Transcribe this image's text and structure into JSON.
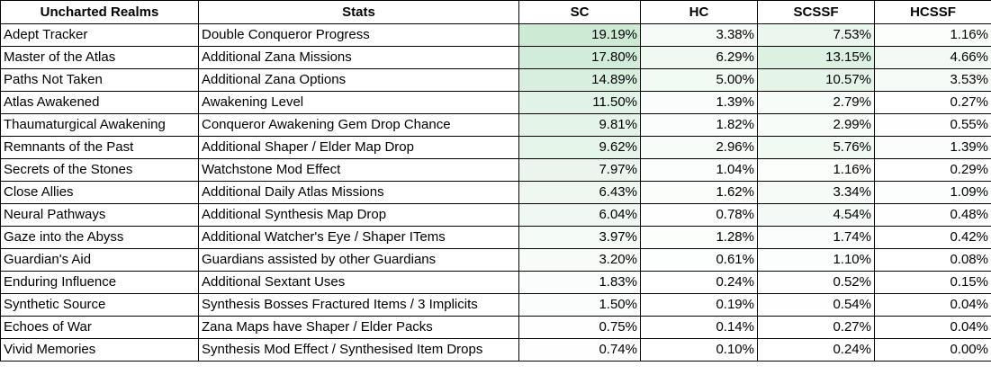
{
  "headers": {
    "realm": "Uncharted Realms",
    "stats": "Stats",
    "sc": "SC",
    "hc": "HC",
    "scssf": "SCSSF",
    "hcssf": "HCSSF"
  },
  "heat_color": "#63BE7B",
  "rows": [
    {
      "realm": "Adept Tracker",
      "stat": "Double Conqueror Progress",
      "sc": "19.19%",
      "hc": "3.38%",
      "scssf": "7.53%",
      "hcssf": "1.16%"
    },
    {
      "realm": "Master of the Atlas",
      "stat": "Additional Zana Missions",
      "sc": "17.80%",
      "hc": "6.29%",
      "scssf": "13.15%",
      "hcssf": "4.66%"
    },
    {
      "realm": "Paths Not Taken",
      "stat": "Additional Zana Options",
      "sc": "14.89%",
      "hc": "5.00%",
      "scssf": "10.57%",
      "hcssf": "3.53%"
    },
    {
      "realm": "Atlas Awakened",
      "stat": "Awakening Level",
      "sc": "11.50%",
      "hc": "1.39%",
      "scssf": "2.79%",
      "hcssf": "0.27%"
    },
    {
      "realm": "Thaumaturgical Awakening",
      "stat": "Conqueror Awakening Gem Drop Chance",
      "sc": "9.81%",
      "hc": "1.82%",
      "scssf": "2.99%",
      "hcssf": "0.55%"
    },
    {
      "realm": "Remnants of the Past",
      "stat": "Additional Shaper / Elder Map Drop",
      "sc": "9.62%",
      "hc": "2.96%",
      "scssf": "5.76%",
      "hcssf": "1.39%"
    },
    {
      "realm": "Secrets of the Stones",
      "stat": "Watchstone Mod Effect",
      "sc": "7.97%",
      "hc": "1.04%",
      "scssf": "1.16%",
      "hcssf": "0.29%"
    },
    {
      "realm": "Close Allies",
      "stat": "Additional Daily Atlas Missions",
      "sc": "6.43%",
      "hc": "1.62%",
      "scssf": "3.34%",
      "hcssf": "1.09%"
    },
    {
      "realm": "Neural Pathways",
      "stat": "Additional Synthesis Map Drop",
      "sc": "6.04%",
      "hc": "0.78%",
      "scssf": "4.54%",
      "hcssf": "0.48%"
    },
    {
      "realm": "Gaze into the Abyss",
      "stat": "Additional Watcher's Eye / Shaper ITems",
      "sc": "3.97%",
      "hc": "1.28%",
      "scssf": "1.74%",
      "hcssf": "0.42%"
    },
    {
      "realm": "Guardian's Aid",
      "stat": "Guardians assisted by other Guardians",
      "sc": "3.20%",
      "hc": "0.61%",
      "scssf": "1.10%",
      "hcssf": "0.08%"
    },
    {
      "realm": "Enduring Influence",
      "stat": "Additional Sextant Uses",
      "sc": "1.83%",
      "hc": "0.24%",
      "scssf": "0.52%",
      "hcssf": "0.15%"
    },
    {
      "realm": "Synthetic Source",
      "stat": "Synthesis Bosses Fractured Items / 3 Implicits",
      "sc": "1.50%",
      "hc": "0.19%",
      "scssf": "0.54%",
      "hcssf": "0.04%"
    },
    {
      "realm": "Echoes of War",
      "stat": "Zana Maps have Shaper / Elder Packs",
      "sc": "0.75%",
      "hc": "0.14%",
      "scssf": "0.27%",
      "hcssf": "0.04%"
    },
    {
      "realm": "Vivid Memories",
      "stat": "Synthesis Mod Effect / Synthesised Item Drops",
      "sc": "0.74%",
      "hc": "0.10%",
      "scssf": "0.24%",
      "hcssf": "0.00%"
    }
  ]
}
